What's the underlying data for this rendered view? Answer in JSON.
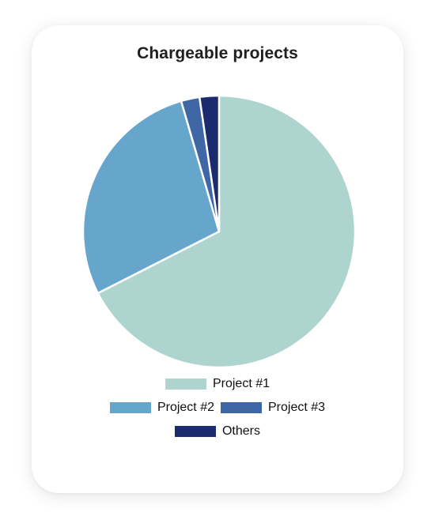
{
  "card": {
    "title": "Chargeable projects"
  },
  "chart_data": {
    "type": "pie",
    "title": "Chargeable projects",
    "legend_position": "bottom",
    "slices": [
      {
        "name": "Project #1",
        "value": 67.5,
        "color": "#aed4cf"
      },
      {
        "name": "Project #2",
        "value": 28.0,
        "color": "#67a6cc"
      },
      {
        "name": "Project #3",
        "value": 2.2,
        "color": "#3f66a5"
      },
      {
        "name": "Others",
        "value": 2.3,
        "color": "#1c2a6e"
      }
    ]
  }
}
